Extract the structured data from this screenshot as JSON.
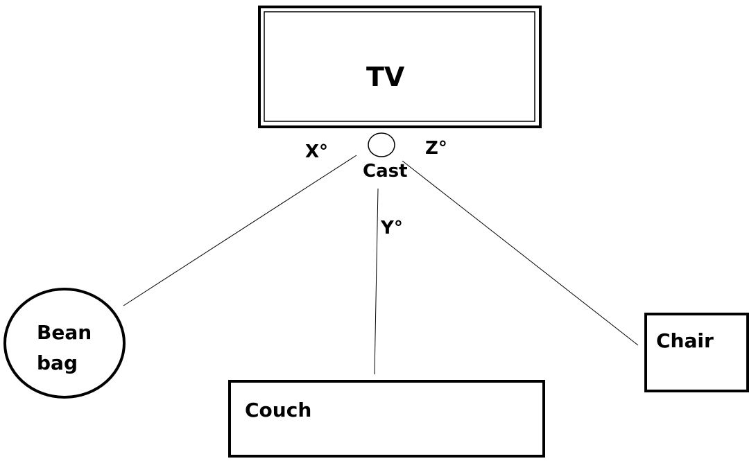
{
  "nodes": {
    "tv": "TV",
    "cast": "Cast",
    "bean_bag": "Bean bag",
    "couch": "Couch",
    "chair": "Chair"
  },
  "angles": {
    "x": "X°",
    "y": "Y°",
    "z": "Z°"
  },
  "edges": [
    {
      "from": "Cast",
      "to": "Bean bag",
      "label": "X°"
    },
    {
      "from": "Cast",
      "to": "Couch",
      "label": "Y°"
    },
    {
      "from": "Cast",
      "to": "Chair",
      "label": "Z°"
    }
  ]
}
